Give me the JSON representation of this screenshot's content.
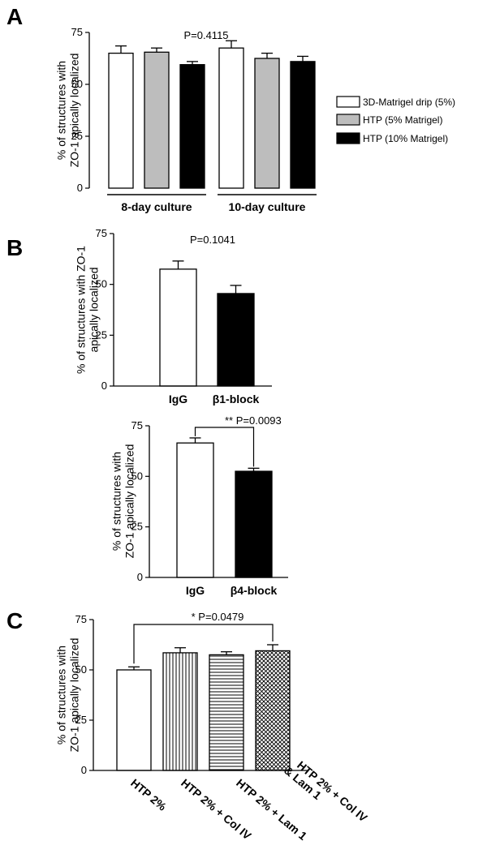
{
  "chart_data": [
    {
      "panel": "A",
      "type": "bar",
      "ylabel": "% of structures with ZO-1 apically localized",
      "ylim": [
        0,
        75
      ],
      "yticks": [
        "0",
        "25",
        "50",
        "75"
      ],
      "groups": [
        "8-day culture",
        "10-day culture"
      ],
      "series": [
        {
          "name": "3D-Matrigel drip (5%)",
          "fill": "#ffffff",
          "values": [
            65,
            67.5
          ],
          "errors": [
            3.5,
            3.5
          ]
        },
        {
          "name": "HTP (5% Matrigel)",
          "fill": "#bdbdbd",
          "values": [
            65.5,
            62.5
          ],
          "errors": [
            2,
            2.5
          ]
        },
        {
          "name": "HTP (10% Matrigel)",
          "fill": "#000000",
          "values": [
            59.5,
            61
          ],
          "errors": [
            1.5,
            2.5
          ]
        }
      ],
      "annotation": "P=0.4115"
    },
    {
      "panel": "B",
      "type": "bar",
      "ylabel": "% of structures with ZO-1 apically localized",
      "ylim": [
        0,
        75
      ],
      "yticks": [
        "0",
        "25",
        "50",
        "75"
      ],
      "categories": [
        "IgG",
        "β1-block"
      ],
      "values": [
        57.5,
        45.5
      ],
      "errors": [
        4,
        4
      ],
      "fills": [
        "#ffffff",
        "#000000"
      ],
      "annotation": "P=0.1041"
    },
    {
      "panel": "",
      "type": "bar",
      "ylabel": "% of structures with ZO-1 apically localized",
      "ylim": [
        0,
        75
      ],
      "yticks": [
        "0",
        "25",
        "50",
        "75"
      ],
      "categories": [
        "IgG",
        "β4-block"
      ],
      "values": [
        66.5,
        52.5
      ],
      "errors": [
        2.5,
        1.5
      ],
      "fills": [
        "#ffffff",
        "#000000"
      ],
      "annotation": "** P=0.0093"
    },
    {
      "panel": "C",
      "type": "bar",
      "ylabel": "% of structures with ZO-1 apically localized",
      "ylim": [
        0,
        75
      ],
      "yticks": [
        "0",
        "25",
        "50",
        "75"
      ],
      "categories": [
        "HTP 2%",
        "HTP 2% + Col IV",
        "HTP 2% + Lam 1",
        "HTP 2% + Col IV & Lam 1"
      ],
      "values": [
        50,
        58.5,
        57.5,
        59.5
      ],
      "errors": [
        1.5,
        2.5,
        1.5,
        3
      ],
      "patterns": [
        "none",
        "vertical",
        "horizontal",
        "crosshatch"
      ],
      "annotation": "* P=0.0479"
    }
  ]
}
